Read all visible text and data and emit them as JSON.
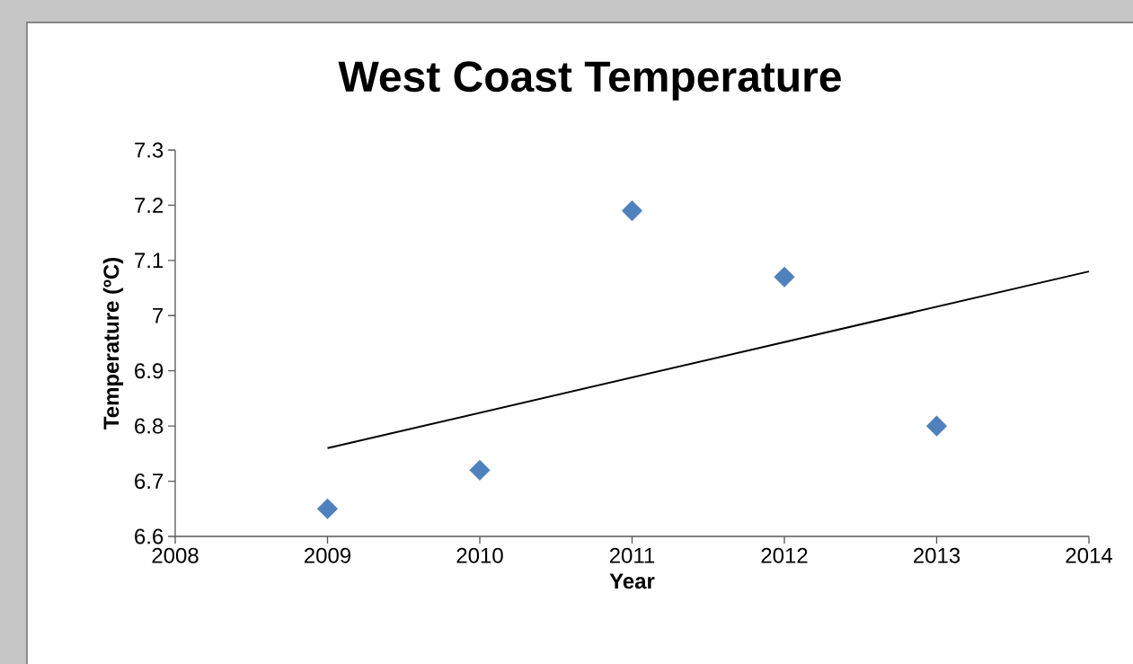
{
  "chart_data": {
    "type": "scatter",
    "title": "West Coast Temperature",
    "xlabel": "Year",
    "ylabel": "Temperature (ºC)",
    "series": [
      {
        "color": "#4f81bd",
        "marker": "diamond",
        "x": [
          2009,
          2010,
          2011,
          2012,
          2013
        ],
        "values": [
          6.65,
          6.72,
          7.19,
          7.07,
          6.8
        ]
      },
      {
        "type": "line",
        "color": "#000000",
        "marker": "none",
        "x": [
          2009,
          2014
        ],
        "values": [
          6.76,
          7.08
        ]
      }
    ],
    "xlim": [
      2008,
      2014
    ],
    "ylim": [
      6.6,
      7.3
    ],
    "xticks": [
      2008,
      2009,
      2010,
      2011,
      2012,
      2013,
      2014
    ],
    "yticks": [
      6.6,
      6.7,
      6.8,
      6.9,
      7,
      7.1,
      7.2,
      7.3
    ]
  }
}
